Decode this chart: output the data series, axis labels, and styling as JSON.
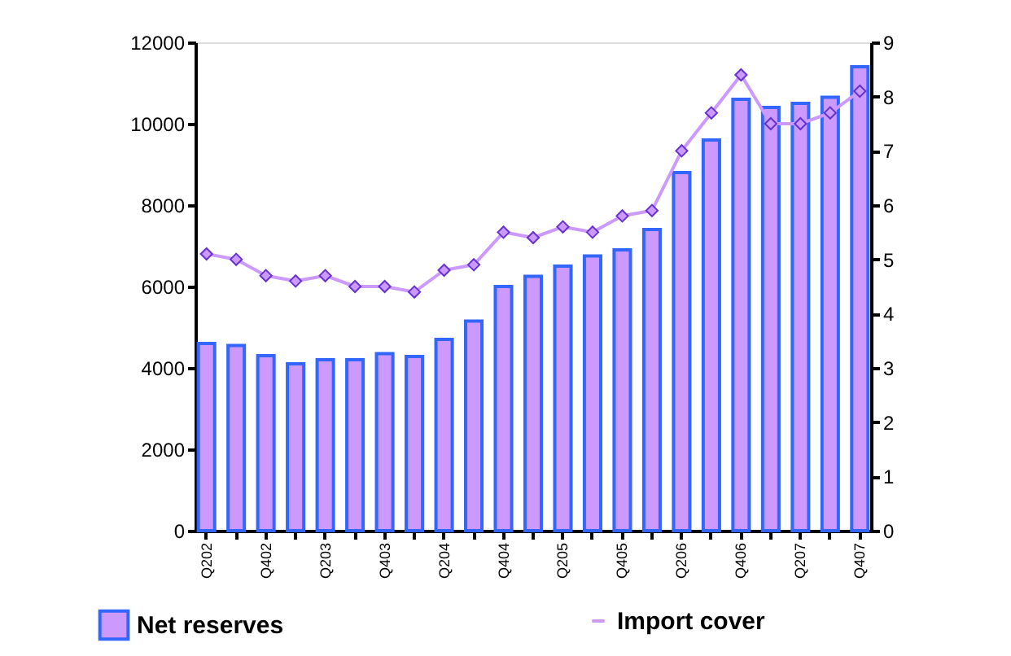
{
  "chart_data": {
    "type": "bar",
    "categories": [
      "Q202",
      null,
      "Q402",
      null,
      "Q203",
      null,
      "Q403",
      null,
      "Q204",
      null,
      "Q404",
      null,
      "Q205",
      null,
      "Q405",
      null,
      "Q206",
      null,
      "Q406",
      null,
      "Q207",
      null,
      "Q407"
    ],
    "series": [
      {
        "name": "Net reserves",
        "color": "#cc99ff",
        "values": [
          4600,
          4550,
          4300,
          4100,
          4200,
          4200,
          4350,
          4280,
          4700,
          5150,
          6000,
          6250,
          6500,
          6750,
          6900,
          7400,
          8800,
          9600,
          10600,
          10400,
          10500,
          10650,
          11400
        ]
      },
      {
        "name": "Import cover",
        "type": "line",
        "axis": "y2",
        "color": "#cc99ff",
        "marker": "diamond",
        "values": [
          5.1,
          5.0,
          4.7,
          4.6,
          4.7,
          4.5,
          4.5,
          4.4,
          4.8,
          4.9,
          5.5,
          5.4,
          5.6,
          5.5,
          5.8,
          5.9,
          7.0,
          7.7,
          8.4,
          7.5,
          7.5,
          7.7,
          8.1
        ]
      }
    ],
    "ylim": [
      0,
      12000
    ],
    "yticks": [
      0,
      2000,
      4000,
      6000,
      8000,
      10000,
      12000
    ],
    "y2lim": [
      0,
      9
    ],
    "y2ticks": [
      0,
      1,
      2,
      3,
      4,
      5,
      6,
      7,
      8,
      9
    ],
    "grid": false,
    "legend": "bottom"
  }
}
